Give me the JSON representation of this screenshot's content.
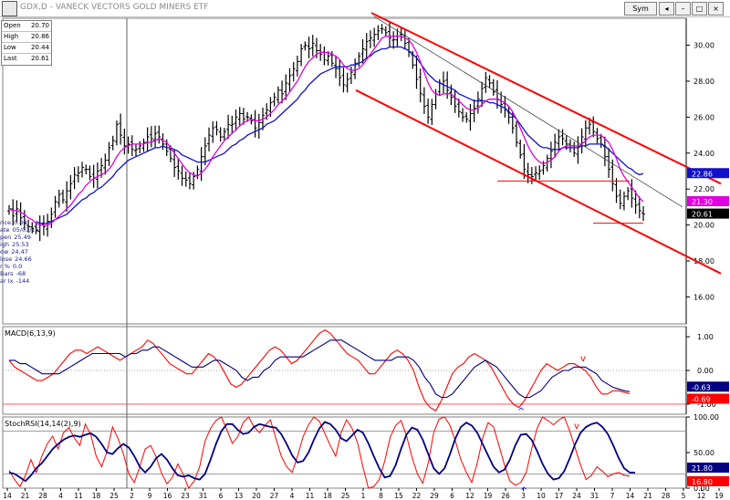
{
  "window": {
    "title": "GDX,D - VANECK VECTORS GOLD MINERS ETF",
    "sym_button": "Sym",
    "buttons": [
      "◂",
      "–",
      "□",
      "×"
    ]
  },
  "ohlc": [
    {
      "label": "Open",
      "value": "20.70"
    },
    {
      "label": "High",
      "value": "20.86"
    },
    {
      "label": "Low",
      "value": "20.44"
    },
    {
      "label": "Last",
      "value": "20.61"
    }
  ],
  "info_panel": [
    {
      "label": "rice",
      "value": "0.00"
    },
    {
      "label": "ate",
      "value": "05/03/16"
    },
    {
      "label": "pen",
      "value": "25.49"
    },
    {
      "label": "igh",
      "value": "25.53"
    },
    {
      "label": "ow",
      "value": "24.47"
    },
    {
      "label": "lose",
      "value": "24.66"
    },
    {
      "label": "r %",
      "value": "0.0"
    },
    {
      "label": "Bars",
      "value": "-68"
    },
    {
      "label": "ar Ix",
      "value": "-144"
    }
  ],
  "colors": {
    "bars": "#000000",
    "fast_ma": "#e000e0",
    "slow_ma": "#1010c8",
    "channel": "#ff0000",
    "trendline": "#404040",
    "macd": "#ff0000",
    "signal": "#000080",
    "stoch_k": "#ff0000",
    "stoch_d": "#000080",
    "grid": "#808080"
  },
  "chart_data": [
    {
      "type": "ohlc",
      "title": "GDX,D - VANECK VECTORS GOLD MINERS ETF",
      "ylim": [
        14.5,
        31.5
      ],
      "yticks": [
        "16.00",
        "18.00",
        "20.00",
        "22.00",
        "24.00",
        "26.00",
        "28.00",
        "30.00"
      ],
      "x_labels": [
        "14",
        "21",
        "28",
        "4",
        "11",
        "18",
        "25",
        "2",
        "9",
        "16",
        "23",
        "31",
        "6",
        "13",
        "20",
        "27",
        "4",
        "11",
        "18",
        "25",
        "1",
        "8",
        "15",
        "22",
        "29",
        "6",
        "12",
        "19",
        "26",
        "3",
        "10",
        "17",
        "24",
        "31",
        "7",
        "14",
        "21",
        "28",
        "5",
        "12",
        "19"
      ],
      "closes": [
        20.9,
        20.5,
        20.9,
        20.4,
        20.1,
        19.9,
        19.8,
        19.7,
        20.0,
        19.9,
        20.2,
        20.6,
        21.3,
        21.7,
        21.4,
        21.9,
        22.3,
        22.8,
        22.9,
        23.2,
        23.1,
        22.7,
        22.6,
        23.0,
        23.3,
        23.6,
        24.3,
        24.7,
        25.6,
        25.0,
        24.4,
        24.5,
        24.2,
        24.2,
        24.4,
        24.6,
        24.9,
        24.8,
        25.1,
        24.9,
        24.5,
        24.1,
        23.7,
        23.2,
        23.0,
        22.6,
        22.5,
        22.3,
        22.7,
        23.1,
        23.8,
        24.4,
        25.0,
        25.4,
        25.3,
        24.9,
        25.2,
        25.6,
        25.6,
        26.0,
        26.2,
        25.9,
        26.0,
        25.8,
        25.4,
        25.7,
        26.1,
        26.4,
        26.8,
        27.1,
        27.5,
        27.3,
        27.9,
        28.3,
        28.7,
        29.1,
        29.8,
        30.0,
        29.8,
        30.1,
        29.7,
        29.5,
        29.2,
        29.4,
        29.0,
        28.7,
        28.2,
        27.8,
        28.1,
        28.5,
        29.0,
        29.4,
        29.8,
        30.2,
        30.4,
        30.6,
        30.8,
        30.9,
        30.7,
        30.4,
        30.3,
        30.5,
        30.6,
        30.1,
        29.6,
        28.9,
        28.1,
        27.3,
        26.6,
        26.0,
        26.7,
        27.3,
        27.9,
        28.0,
        27.5,
        27.1,
        26.6,
        26.3,
        26.0,
        25.9,
        26.2,
        26.5,
        27.0,
        27.6,
        28.2,
        27.9,
        27.4,
        27.0,
        26.7,
        26.4,
        26.0,
        25.4,
        24.6,
        23.9,
        23.1,
        22.8,
        22.7,
        22.9,
        23.0,
        23.3,
        23.7,
        24.1,
        24.6,
        24.9,
        24.8,
        24.5,
        24.3,
        24.0,
        24.4,
        24.9,
        25.4,
        25.6,
        25.2,
        24.8,
        24.5,
        23.8,
        23.1,
        22.3,
        21.6,
        21.2,
        21.6,
        21.9,
        21.5,
        21.1,
        20.8,
        20.6
      ],
      "fast_ma": [
        20.9,
        20.8,
        20.8,
        20.7,
        20.6,
        20.4,
        20.3,
        20.1,
        20.0,
        20.0,
        20.0,
        20.1,
        20.3,
        20.5,
        20.7,
        20.9,
        21.1,
        21.4,
        21.7,
        21.9,
        22.2,
        22.4,
        22.6,
        22.7,
        22.8,
        22.9,
        23.1,
        23.4,
        23.8,
        24.1,
        24.3,
        24.4,
        24.5,
        24.5,
        24.5,
        24.5,
        24.6,
        24.6,
        24.7,
        24.8,
        24.7,
        24.6,
        24.3,
        24.0,
        23.7,
        23.4,
        23.1,
        22.9,
        22.8,
        22.7,
        22.9,
        23.1,
        23.4,
        23.8,
        24.1,
        24.4,
        24.7,
        24.9,
        25.1,
        25.3,
        25.5,
        25.7,
        25.8,
        25.9,
        25.8,
        25.8,
        25.9,
        26.0,
        26.2,
        26.4,
        26.7,
        26.9,
        27.1,
        27.4,
        27.7,
        28.0,
        28.4,
        28.8,
        29.1,
        29.3,
        29.5,
        29.6,
        29.6,
        29.6,
        29.5,
        29.4,
        29.2,
        28.9,
        28.7,
        28.6,
        28.6,
        28.7,
        28.9,
        29.2,
        29.5,
        29.8,
        30.1,
        30.4,
        30.5,
        30.5,
        30.5,
        30.5,
        30.5,
        30.4,
        30.3,
        30.0,
        29.6,
        29.1,
        28.5,
        27.9,
        27.5,
        27.3,
        27.2,
        27.3,
        27.3,
        27.3,
        27.1,
        26.9,
        26.7,
        26.5,
        26.4,
        26.4,
        26.5,
        26.7,
        26.9,
        27.0,
        27.0,
        27.0,
        26.9,
        26.8,
        26.6,
        26.3,
        25.9,
        25.4,
        24.9,
        24.4,
        24.0,
        23.7,
        23.5,
        23.4,
        23.5,
        23.6,
        23.8,
        24.1,
        24.3,
        24.4,
        24.4,
        24.4,
        24.4,
        24.5,
        24.7,
        24.9,
        25.0,
        25.0,
        25.0,
        24.8,
        24.6,
        24.2,
        23.7,
        23.1,
        22.7,
        22.4,
        22.1,
        21.8,
        21.5,
        21.3
      ],
      "slow_ma": [
        null,
        null,
        null,
        null,
        null,
        null,
        null,
        20.2,
        20.1,
        20.1,
        20.1,
        20.2,
        20.3,
        20.4,
        20.5,
        20.6,
        20.8,
        21.0,
        21.2,
        21.4,
        21.5,
        21.7,
        21.8,
        22.0,
        22.1,
        22.3,
        22.5,
        22.7,
        23.0,
        23.2,
        23.4,
        23.6,
        23.7,
        23.8,
        23.9,
        24.0,
        24.1,
        24.2,
        24.3,
        24.3,
        24.4,
        24.3,
        24.3,
        24.2,
        24.1,
        23.9,
        23.8,
        23.7,
        23.6,
        23.5,
        23.5,
        23.5,
        23.6,
        23.7,
        23.8,
        23.9,
        24.0,
        24.2,
        24.4,
        24.5,
        24.7,
        24.8,
        25.0,
        25.1,
        25.2,
        25.3,
        25.4,
        25.6,
        25.7,
        25.8,
        26.0,
        26.2,
        26.4,
        26.6,
        26.8,
        27.0,
        27.3,
        27.5,
        27.8,
        28.0,
        28.2,
        28.4,
        28.5,
        28.6,
        28.7,
        28.8,
        28.8,
        28.8,
        28.8,
        28.9,
        28.9,
        29.0,
        29.1,
        29.3,
        29.4,
        29.6,
        29.7,
        29.8,
        29.8,
        29.9,
        29.9,
        29.9,
        29.9,
        29.8,
        29.7,
        29.5,
        29.3,
        29.0,
        28.7,
        28.4,
        28.2,
        28.0,
        27.9,
        27.8,
        27.7,
        27.6,
        27.5,
        27.3,
        27.2,
        27.1,
        27.0,
        26.9,
        26.9,
        26.9,
        26.9,
        26.8,
        26.8,
        26.7,
        26.6,
        26.5,
        26.3,
        26.1,
        25.9,
        25.6,
        25.3,
        25.0,
        24.8,
        24.6,
        24.4,
        24.3,
        24.3,
        24.2,
        24.2,
        24.2,
        24.3,
        24.3,
        24.3,
        24.3,
        24.3,
        24.4,
        24.4,
        24.5,
        24.5,
        24.5,
        24.5,
        24.4,
        24.2,
        24.0,
        23.8,
        23.6,
        23.4,
        23.2,
        23.1,
        22.9,
        22.8,
        22.86
      ],
      "channel_upper": [
        [
          31.8,
          407
        ],
        [
          22.3,
          790
        ]
      ],
      "channel_lower": [
        [
          27.5,
          390
        ],
        [
          17.3,
          790
        ]
      ],
      "trendline": [
        [
          31.6,
          410
        ],
        [
          21.0,
          748
        ]
      ],
      "hline_upper": [
        [
          22.45,
          545
        ],
        [
          22.45,
          690
        ]
      ],
      "hline_lower": [
        [
          20.1,
          650
        ],
        [
          20.1,
          705
        ]
      ],
      "last_values": [
        {
          "value": "22.86",
          "color": "#1010c8"
        },
        {
          "value": "21.30",
          "color": "#e000e0"
        },
        {
          "value": "20.61",
          "color": "#000000"
        }
      ]
    },
    {
      "type": "line",
      "title": "MACD(6,13,9)",
      "ylim": [
        -1.3,
        1.3
      ],
      "yticks": [
        "1.00",
        "0.00",
        "-1.00"
      ],
      "macd": [
        0.3,
        0.1,
        0.0,
        -0.1,
        -0.2,
        -0.3,
        -0.3,
        -0.2,
        -0.1,
        0.1,
        0.3,
        0.5,
        0.6,
        0.6,
        0.5,
        0.6,
        0.7,
        0.6,
        0.5,
        0.4,
        0.3,
        0.4,
        0.5,
        0.6,
        0.7,
        0.9,
        0.8,
        0.6,
        0.4,
        0.2,
        0.1,
        0.0,
        -0.1,
        -0.1,
        0.1,
        0.3,
        0.5,
        0.4,
        0.2,
        -0.1,
        -0.4,
        -0.5,
        -0.4,
        -0.2,
        0.0,
        0.2,
        0.4,
        0.6,
        0.7,
        0.6,
        0.4,
        0.2,
        0.3,
        0.5,
        0.7,
        0.9,
        1.1,
        1.2,
        1.1,
        0.9,
        0.7,
        0.5,
        0.4,
        0.3,
        0.1,
        -0.1,
        -0.1,
        0.1,
        0.3,
        0.5,
        0.6,
        0.5,
        0.3,
        0.0,
        -0.5,
        -0.9,
        -1.1,
        -1.2,
        -0.9,
        -0.5,
        -0.1,
        0.1,
        0.2,
        0.4,
        0.5,
        0.4,
        0.3,
        0.1,
        -0.2,
        -0.5,
        -0.8,
        -1.0,
        -1.1,
        -0.9,
        -0.6,
        -0.3,
        0.0,
        0.2,
        0.1,
        0.0,
        0.1,
        0.2,
        0.2,
        0.1,
        0.0,
        -0.2,
        -0.5,
        -0.7,
        -0.7,
        -0.6,
        -0.6,
        -0.65,
        -0.69
      ],
      "signal": [
        0.3,
        0.3,
        0.2,
        0.2,
        0.1,
        0.0,
        -0.1,
        -0.1,
        -0.1,
        -0.1,
        0.0,
        0.1,
        0.2,
        0.3,
        0.4,
        0.5,
        0.5,
        0.5,
        0.5,
        0.5,
        0.5,
        0.4,
        0.5,
        0.5,
        0.6,
        0.6,
        0.7,
        0.7,
        0.6,
        0.5,
        0.4,
        0.3,
        0.2,
        0.1,
        0.1,
        0.1,
        0.2,
        0.3,
        0.3,
        0.2,
        0.1,
        0.0,
        -0.2,
        -0.3,
        -0.2,
        -0.2,
        0.0,
        0.1,
        0.3,
        0.4,
        0.4,
        0.4,
        0.4,
        0.4,
        0.5,
        0.6,
        0.7,
        0.8,
        0.9,
        0.9,
        0.9,
        0.8,
        0.7,
        0.6,
        0.5,
        0.4,
        0.3,
        0.3,
        0.3,
        0.3,
        0.4,
        0.4,
        0.4,
        0.3,
        0.1,
        -0.2,
        -0.4,
        -0.7,
        -0.8,
        -0.8,
        -0.7,
        -0.5,
        -0.3,
        -0.1,
        0.1,
        0.2,
        0.3,
        0.2,
        0.1,
        -0.1,
        -0.3,
        -0.5,
        -0.7,
        -0.8,
        -0.8,
        -0.7,
        -0.6,
        -0.4,
        -0.2,
        -0.1,
        0.0,
        0.0,
        0.1,
        0.1,
        0.1,
        0.0,
        -0.1,
        -0.3,
        -0.4,
        -0.5,
        -0.55,
        -0.6,
        -0.63
      ],
      "last_values": [
        {
          "value": "-0.63",
          "color": "#000080"
        },
        {
          "value": "-0.69",
          "color": "#ff0000"
        }
      ],
      "annotations": [
        "^",
        "v"
      ]
    },
    {
      "type": "line",
      "title": "StochRSI(14,14(2),9)",
      "ylim": [
        0,
        100
      ],
      "yticks": [
        "100.00",
        "50.00",
        "0.00"
      ],
      "stoch_k": [
        25,
        12,
        2,
        18,
        40,
        22,
        45,
        62,
        73,
        55,
        78,
        85,
        70,
        60,
        90,
        75,
        45,
        30,
        52,
        86,
        70,
        48,
        20,
        8,
        30,
        55,
        60,
        44,
        21,
        6,
        15,
        34,
        19,
        0,
        10,
        30,
        66,
        84,
        95,
        100,
        82,
        63,
        72,
        92,
        100,
        86,
        78,
        88,
        96,
        70,
        45,
        30,
        22,
        45,
        72,
        89,
        100,
        94,
        77,
        60,
        45,
        78,
        96,
        84,
        64,
        30,
        0,
        2,
        12,
        38,
        71,
        88,
        95,
        74,
        44,
        20,
        7,
        35,
        78,
        97,
        100,
        88,
        66,
        40,
        22,
        8,
        35,
        70,
        92,
        86,
        60,
        33,
        10,
        4,
        8,
        22,
        55,
        84,
        100,
        95,
        89,
        96,
        100,
        80,
        56,
        32,
        12,
        18,
        30,
        24,
        16,
        20,
        22,
        18,
        16.8
      ],
      "stoch_d": [
        22,
        20,
        15,
        10,
        18,
        28,
        35,
        45,
        55,
        62,
        68,
        72,
        74,
        72,
        75,
        77,
        72,
        62,
        50,
        48,
        56,
        62,
        57,
        45,
        30,
        22,
        30,
        42,
        48,
        40,
        28,
        18,
        16,
        18,
        14,
        12,
        20,
        40,
        62,
        80,
        90,
        90,
        82,
        76,
        78,
        86,
        90,
        88,
        86,
        85,
        76,
        62,
        46,
        36,
        38,
        50,
        68,
        84,
        93,
        90,
        82,
        70,
        66,
        74,
        82,
        78,
        63,
        45,
        28,
        15,
        17,
        32,
        55,
        75,
        85,
        82,
        68,
        48,
        28,
        20,
        28,
        48,
        70,
        86,
        92,
        88,
        78,
        62,
        46,
        30,
        22,
        26,
        40,
        60,
        75,
        76,
        68,
        52,
        34,
        20,
        12,
        14,
        24,
        42,
        62,
        78,
        86,
        90,
        92,
        86,
        76,
        60,
        42,
        28,
        22,
        21.8
      ],
      "last_values": [
        {
          "value": "21.80",
          "color": "#000080"
        },
        {
          "value": "16.80",
          "color": "#ff0000"
        }
      ],
      "annotations": [
        "^",
        "v"
      ]
    }
  ]
}
